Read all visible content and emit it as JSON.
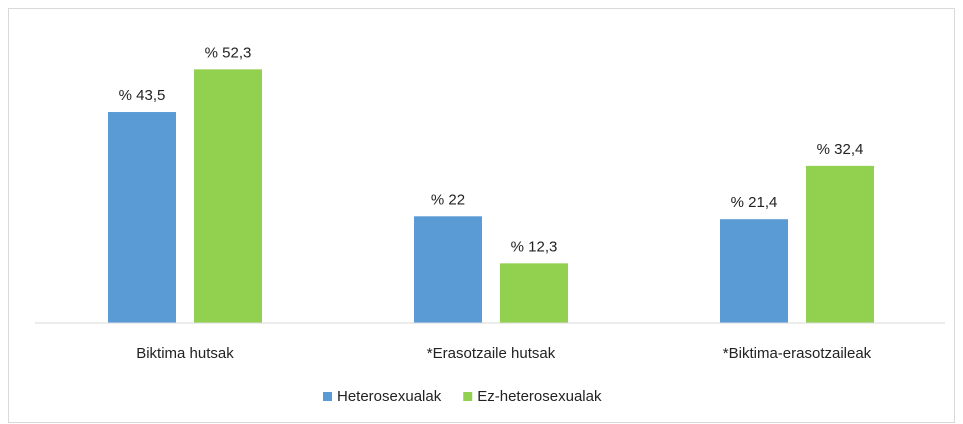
{
  "chart_data": {
    "type": "bar",
    "categories": [
      "Biktima hutsak",
      "*Erasotzaile hutsak",
      "*Biktima-erasotzaileak"
    ],
    "series": [
      {
        "name": "Heterosexualak",
        "color": "#5b9bd5",
        "values": [
          43.5,
          22,
          21.4
        ],
        "value_labels": [
          "% 43,5",
          "% 22",
          "% 21,4"
        ]
      },
      {
        "name": "Ez-heterosexualak",
        "color": "#92d050",
        "values": [
          52.3,
          12.3,
          32.4
        ],
        "value_labels": [
          "% 52,3",
          "% 12,3",
          "% 32,4"
        ]
      }
    ],
    "ylim": [
      0,
      60
    ],
    "legend": "bottom"
  }
}
